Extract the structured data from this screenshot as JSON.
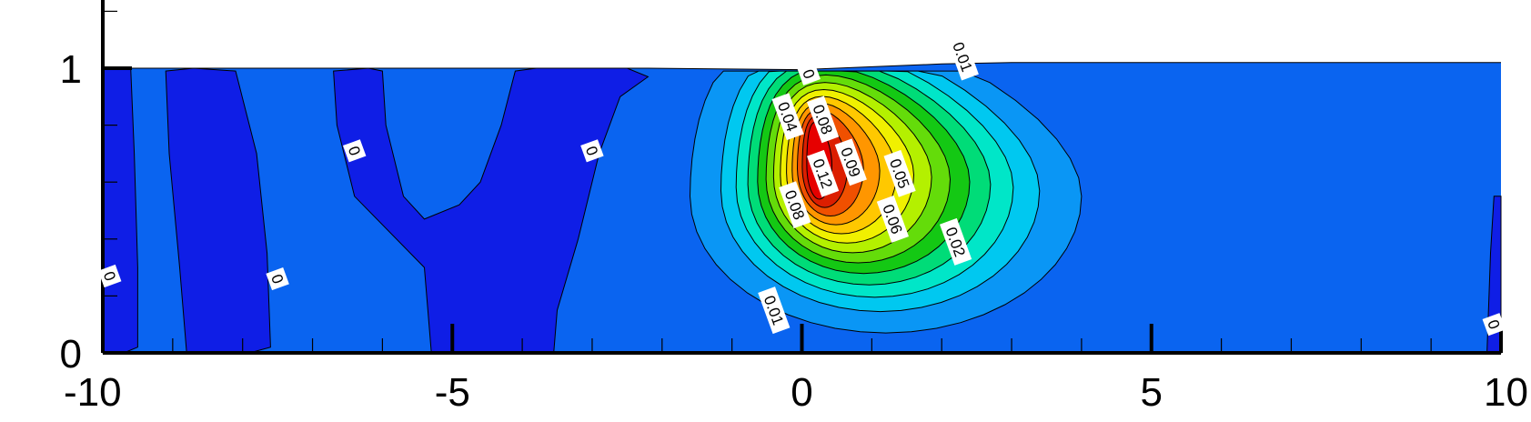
{
  "chart_data": {
    "type": "heatmap",
    "title": "",
    "xlabel": "",
    "ylabel": "",
    "xlim": [
      -10,
      10
    ],
    "ylim": [
      0,
      1.25
    ],
    "x_ticks": [
      {
        "value": -10,
        "label": "-10"
      },
      {
        "value": -5,
        "label": "-5"
      },
      {
        "value": 0,
        "label": "0"
      },
      {
        "value": 5,
        "label": "5"
      },
      {
        "value": 10,
        "label": "10"
      }
    ],
    "y_ticks": [
      {
        "value": 0,
        "label": "0"
      },
      {
        "value": 1,
        "label": "1"
      }
    ],
    "free_surface": [
      [
        -10,
        1.0
      ],
      [
        -2.2,
        1.0
      ],
      [
        0,
        0.995
      ],
      [
        2,
        1.015
      ],
      [
        3,
        1.02
      ],
      [
        10,
        1.02
      ]
    ],
    "contour_levels": [
      0,
      0.01,
      0.02,
      0.03,
      0.04,
      0.05,
      0.06,
      0.07,
      0.08,
      0.09,
      0.1,
      0.11,
      0.12,
      0.13
    ],
    "colors": {
      "negative": "#0f1ee6",
      "level_0": "#0a64f0",
      "level_0.01": "#0a96f5",
      "level_0.02": "#00c8f0",
      "level_0.03": "#00e6c8",
      "level_0.04": "#00dc78",
      "level_0.05": "#14c814",
      "level_0.06": "#64dc0a",
      "level_0.07": "#b4f000",
      "level_0.08": "#f0f000",
      "level_0.09": "#ffc800",
      "level_0.10": "#ff9600",
      "level_0.11": "#f05000",
      "level_0.12": "#dc1e00",
      "level_0.13": "#e60000"
    },
    "contour_labels": [
      {
        "text": "0",
        "x": -6.4,
        "y": 0.71
      },
      {
        "text": "0",
        "x": -3.0,
        "y": 0.71
      },
      {
        "text": "0",
        "x": -7.5,
        "y": 0.26
      },
      {
        "text": "0",
        "x": -9.9,
        "y": 0.27
      },
      {
        "text": "0",
        "x": 9.9,
        "y": 0.1
      },
      {
        "text": "0",
        "x": 0.1,
        "y": 0.98
      },
      {
        "text": "0.01",
        "x": 2.3,
        "y": 1.04
      },
      {
        "text": "0.01",
        "x": -0.4,
        "y": 0.15
      },
      {
        "text": "0.02",
        "x": 2.2,
        "y": 0.39
      },
      {
        "text": "0.04",
        "x": -0.2,
        "y": 0.83
      },
      {
        "text": "0.08",
        "x": 0.3,
        "y": 0.82
      },
      {
        "text": "0.09",
        "x": 0.7,
        "y": 0.67
      },
      {
        "text": "0.12",
        "x": 0.3,
        "y": 0.63
      },
      {
        "text": "0.08",
        "x": -0.1,
        "y": 0.52
      },
      {
        "text": "0.05",
        "x": 1.4,
        "y": 0.63
      },
      {
        "text": "0.06",
        "x": 1.3,
        "y": 0.47
      }
    ]
  }
}
